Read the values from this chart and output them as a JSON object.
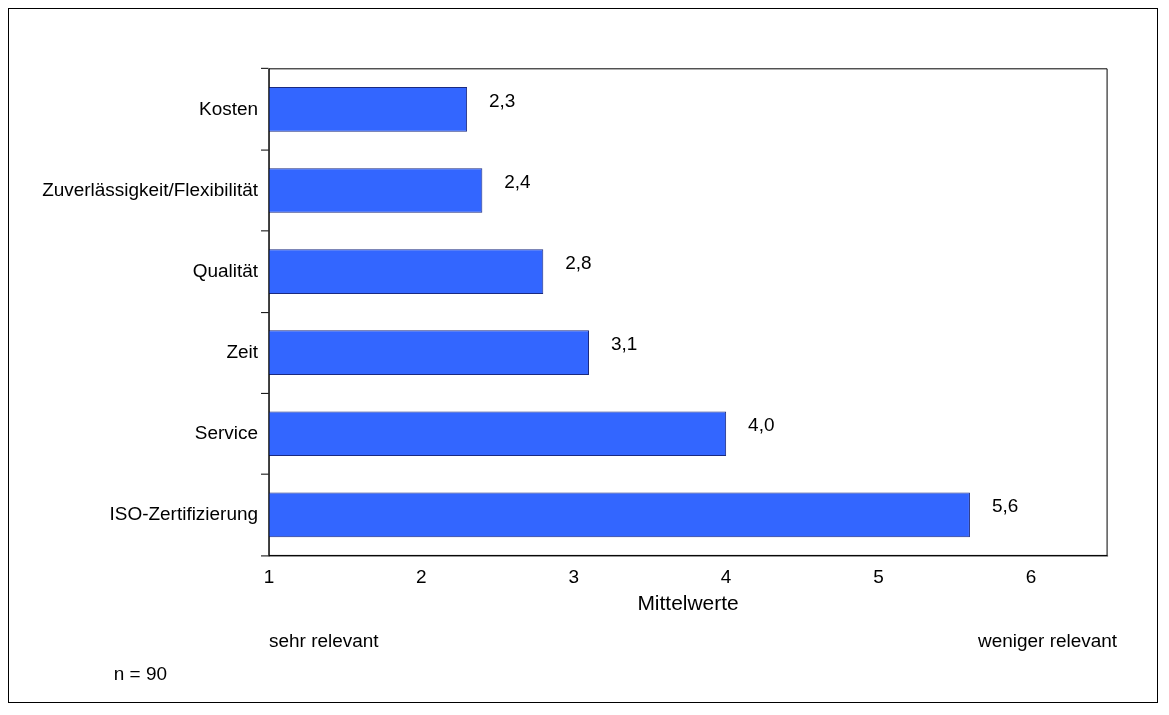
{
  "chart_data": {
    "type": "bar",
    "orientation": "horizontal",
    "categories": [
      "Kosten",
      "Zuverlässigkeit/Flexibilität",
      "Qualität",
      "Zeit",
      "Service",
      "ISO-Zertifizierung"
    ],
    "values": [
      2.3,
      2.4,
      2.8,
      3.1,
      4.0,
      5.6
    ],
    "value_labels": [
      "2,3",
      "2,4",
      "2,8",
      "3,1",
      "4,0",
      "5,6"
    ],
    "color": "#3366ff",
    "xlim": [
      1,
      6.5
    ],
    "xticks": [
      1,
      2,
      3,
      4,
      5,
      6
    ],
    "xlabel": "Mittelwerte",
    "annotations": [
      "sehr relevant",
      "weniger relevant",
      "n = 90"
    ],
    "grid": false,
    "legend": false
  }
}
